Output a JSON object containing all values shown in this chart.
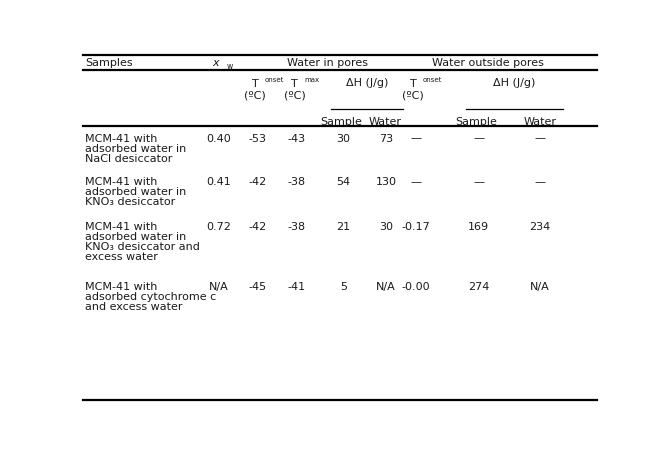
{
  "figsize": [
    6.63,
    4.52
  ],
  "dpi": 100,
  "bg_color": "#ffffff",
  "text_color": "#1a1a1a",
  "font_size": 8.0,
  "col_x": {
    "samples": 0.005,
    "xw": 0.265,
    "T_onset_in": 0.34,
    "T_max": 0.415,
    "dH_sample_in": 0.497,
    "dH_water_in": 0.568,
    "T_onset_out": 0.648,
    "dH_sample_out": 0.76,
    "dH_water_out": 0.87
  },
  "rows": [
    {
      "sample_lines": [
        "MCM-41 with",
        "adsorbed water in",
        "NaCl desiccator"
      ],
      "xw": "0.40",
      "T_onset_in": "-53",
      "T_max": "-43",
      "dH_sample_in": "30",
      "dH_water_in": "73",
      "T_onset_out": "—",
      "dH_sample_out": "—",
      "dH_water_out": "—"
    },
    {
      "sample_lines": [
        "MCM-41 with",
        "adsorbed water in",
        "KNO₃ desiccator"
      ],
      "xw": "0.41",
      "T_onset_in": "-42",
      "T_max": "-38",
      "dH_sample_in": "54",
      "dH_water_in": "130",
      "T_onset_out": "—",
      "dH_sample_out": "—",
      "dH_water_out": "—"
    },
    {
      "sample_lines": [
        "MCM-41 with",
        "adsorbed water in",
        "KNO₃ desiccator and",
        "excess water"
      ],
      "xw": "0.72",
      "T_onset_in": "-42",
      "T_max": "-38",
      "dH_sample_in": "21",
      "dH_water_in": "30",
      "T_onset_out": "-0.17",
      "dH_sample_out": "169",
      "dH_water_out": "234"
    },
    {
      "sample_lines": [
        "MCM-41 with",
        "adsorbed cytochrome c",
        "and excess water"
      ],
      "xw": "N/A",
      "T_onset_in": "-45",
      "T_max": "-41",
      "dH_sample_in": "5",
      "dH_water_in": "N/A",
      "T_onset_out": "-0.00",
      "dH_sample_out": "274",
      "dH_water_out": "N/A"
    }
  ]
}
